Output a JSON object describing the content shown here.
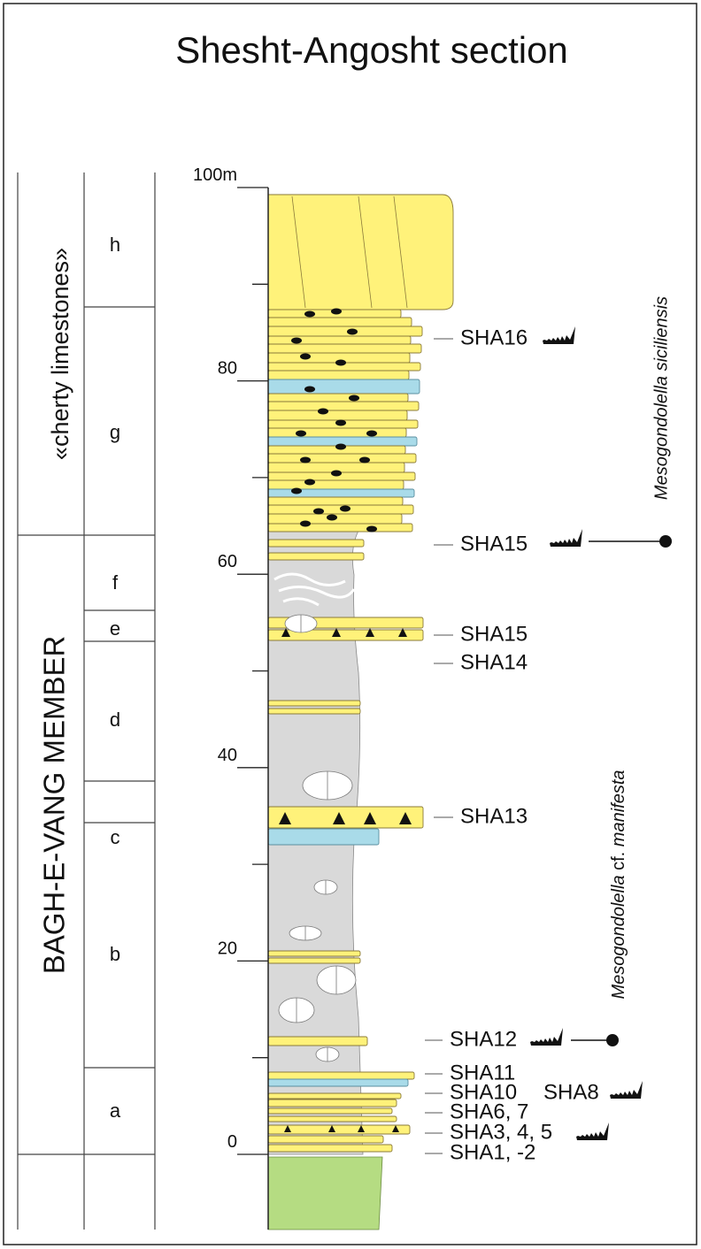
{
  "header": {
    "title": "Shesht-Angosht section"
  },
  "formations": [
    {
      "label": "«cherty limestones»"
    },
    {
      "label": "BAGH-E-VANG MEMBER"
    }
  ],
  "units": [
    {
      "label": "h"
    },
    {
      "label": "g"
    },
    {
      "label": "f"
    },
    {
      "label": "e"
    },
    {
      "label": "d"
    },
    {
      "label": "c"
    },
    {
      "label": "b"
    },
    {
      "label": "a"
    }
  ],
  "scale": [
    {
      "label": "100m"
    },
    {
      "label": "80"
    },
    {
      "label": "60"
    },
    {
      "label": "40"
    },
    {
      "label": "20"
    },
    {
      "label": "0"
    }
  ],
  "samples": [
    {
      "label": "SHA16"
    },
    {
      "label": "SHA15"
    },
    {
      "label": "SHA15"
    },
    {
      "label": "SHA14"
    },
    {
      "label": "SHA13"
    },
    {
      "label": "SHA12"
    },
    {
      "label": "SHA11"
    },
    {
      "label": "SHA10"
    },
    {
      "label": "SHA8"
    },
    {
      "label": "SHA6, 7"
    },
    {
      "label": "SHA3, 4, 5"
    },
    {
      "label": "SHA1, -2"
    }
  ],
  "zones": [
    {
      "label": "Mesogondolella siciliensis"
    },
    {
      "parts": [
        "Mesogondolella",
        "cf.",
        "manifesta"
      ]
    }
  ]
}
